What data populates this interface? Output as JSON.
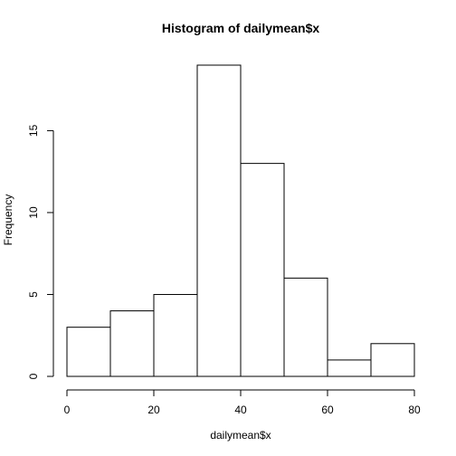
{
  "chart_data": {
    "type": "bar",
    "title": "Histogram of dailymean$x",
    "xlabel": "dailymean$x",
    "ylabel": "Frequency",
    "bins": [
      {
        "from": 0,
        "to": 10,
        "count": 3
      },
      {
        "from": 10,
        "to": 20,
        "count": 4
      },
      {
        "from": 20,
        "to": 30,
        "count": 5
      },
      {
        "from": 30,
        "to": 40,
        "count": 19
      },
      {
        "from": 40,
        "to": 50,
        "count": 13
      },
      {
        "from": 50,
        "to": 60,
        "count": 6
      },
      {
        "from": 60,
        "to": 70,
        "count": 1
      },
      {
        "from": 70,
        "to": 80,
        "count": 2
      }
    ],
    "xlim": [
      0,
      80
    ],
    "ylim": [
      0,
      19
    ],
    "xticks": [
      0,
      20,
      40,
      60,
      80
    ],
    "yticks": [
      0,
      5,
      10,
      15
    ],
    "grid": false,
    "colors": {
      "bar_fill": "#ffffff",
      "bar_stroke": "#000000"
    }
  }
}
